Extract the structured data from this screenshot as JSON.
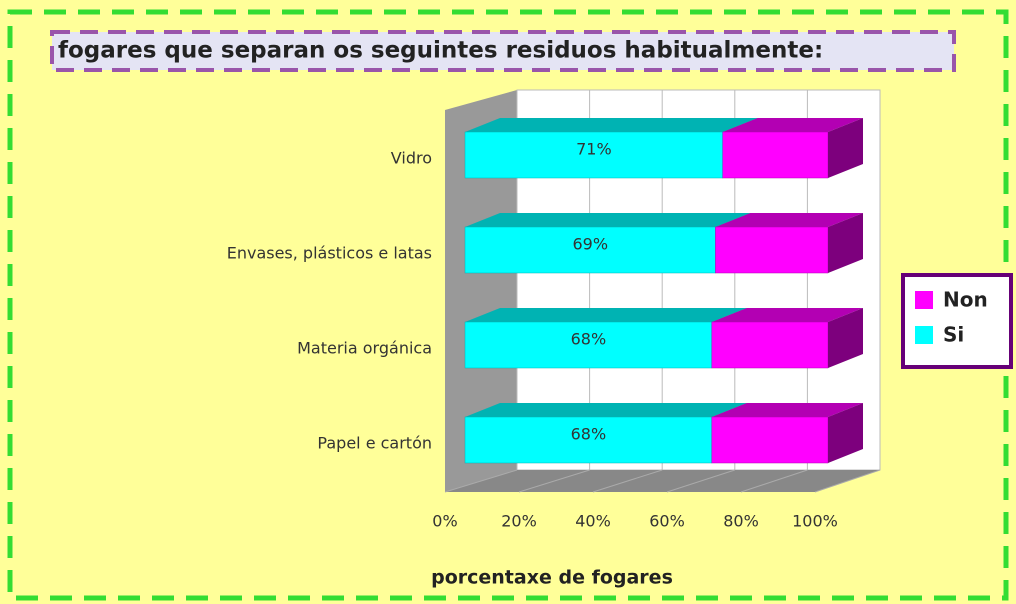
{
  "chart_data": {
    "type": "bar3d_stacked_horizontal",
    "title": "fogares que separan os seguintes residuos habitualmente:",
    "xlabel": "porcentaxe de fogares",
    "categories": [
      "Vidro",
      "Envases, plásticos e latas",
      "Materia orgánica",
      "Papel e cartón"
    ],
    "series": [
      {
        "name": "Non",
        "color": "#ff00ff",
        "values": [
          29,
          31,
          32,
          32
        ]
      },
      {
        "name": "Si",
        "color": "#00ffff",
        "values": [
          71,
          69,
          68,
          68
        ],
        "value_labels": [
          "71%",
          "69%",
          "68%",
          "68%"
        ]
      }
    ],
    "xlim": [
      0,
      100
    ],
    "xticks": [
      {
        "value": 0,
        "label": "0%"
      },
      {
        "value": 20,
        "label": "20%"
      },
      {
        "value": 40,
        "label": "40%"
      },
      {
        "value": 60,
        "label": "60%"
      },
      {
        "value": 80,
        "label": "80%"
      },
      {
        "value": 100,
        "label": "100%"
      }
    ],
    "grid": true
  }
}
